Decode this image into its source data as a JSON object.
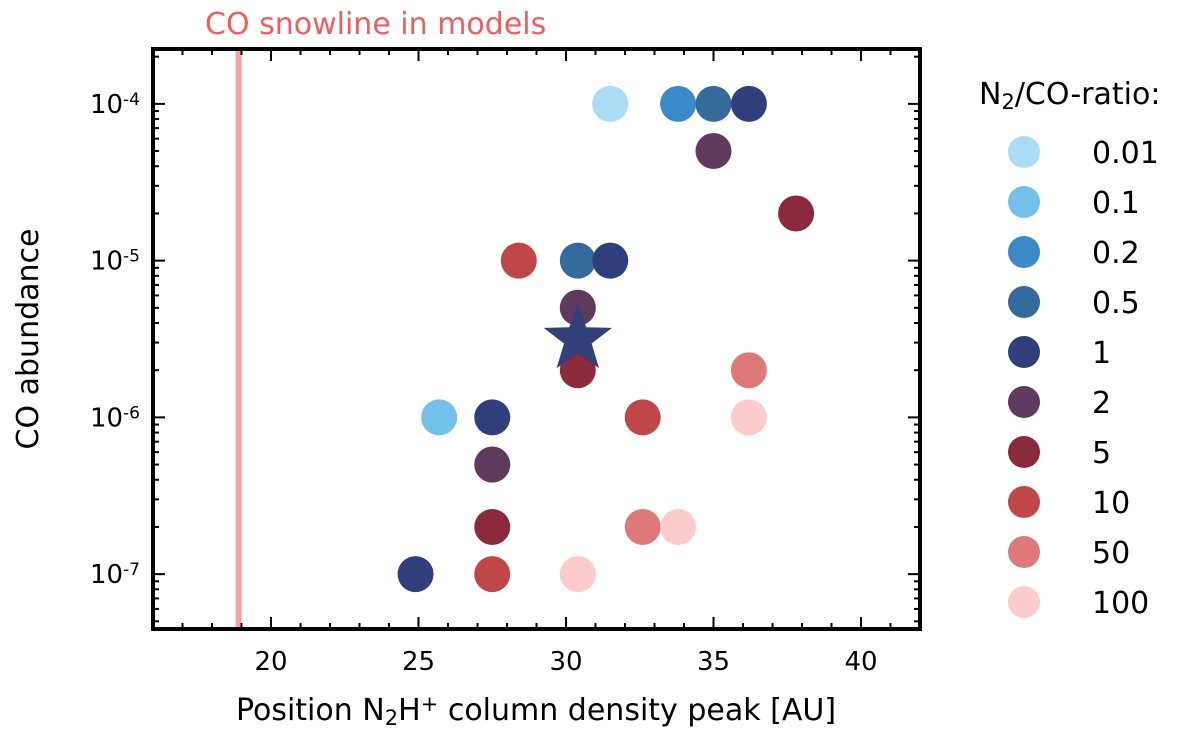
{
  "chart_data": {
    "type": "scatter",
    "annotation": "CO snowline in models",
    "annotation_color": "#f25c5c",
    "snowline_x": 18.9,
    "snowline_color": "#f6a0a0",
    "xlabel_pre": "Position N",
    "xlabel_sub": "2",
    "xlabel_mid": "H",
    "xlabel_sup": "+",
    "xlabel_post": " column density peak [AU]",
    "ylabel": "CO abundance",
    "xlim": [
      16,
      42
    ],
    "ylim_log10": [
      -7.35,
      -3.65
    ],
    "yscale": "log",
    "x_ticks": [
      "20",
      "25",
      "30",
      "35",
      "40"
    ],
    "y_ticks": [
      {
        "base": "10",
        "exp": "-4",
        "value": -4
      },
      {
        "base": "10",
        "exp": "-5",
        "value": -5
      },
      {
        "base": "10",
        "exp": "-6",
        "value": -6
      },
      {
        "base": "10",
        "exp": "-7",
        "value": -7
      }
    ],
    "legend_title_pre": "N",
    "legend_title_sub": "2",
    "legend_title_post": "/CO-ratio:",
    "legend_placement": "right",
    "series": [
      {
        "name": "0.01",
        "color": "#a9dcf5",
        "points": [
          [
            31.5,
            -4
          ]
        ]
      },
      {
        "name": "0.1",
        "color": "#72c1ea",
        "points": [
          [
            25.7,
            -6
          ]
        ]
      },
      {
        "name": "0.2",
        "color": "#3a8ac7",
        "points": [
          [
            33.8,
            -4
          ]
        ]
      },
      {
        "name": "0.5",
        "color": "#346b9c",
        "points": [
          [
            35.0,
            -4
          ],
          [
            30.4,
            -5
          ]
        ]
      },
      {
        "name": "1",
        "color": "#2e3f7c",
        "points": [
          [
            36.2,
            -4
          ],
          [
            31.5,
            -5
          ],
          [
            27.5,
            -6
          ],
          [
            24.9,
            -7
          ]
        ]
      },
      {
        "name": "2",
        "color": "#60395f",
        "points": [
          [
            35.0,
            -4.301
          ],
          [
            30.4,
            -5.301
          ],
          [
            27.5,
            -6.301
          ]
        ]
      },
      {
        "name": "5",
        "color": "#8b2a3d",
        "points": [
          [
            37.8,
            -4.699
          ],
          [
            30.4,
            -5.699
          ],
          [
            27.5,
            -6.699
          ]
        ]
      },
      {
        "name": "10",
        "color": "#bf4747",
        "points": [
          [
            28.4,
            -5
          ],
          [
            32.6,
            -6
          ],
          [
            27.5,
            -7
          ]
        ]
      },
      {
        "name": "50",
        "color": "#de7979",
        "points": [
          [
            36.2,
            -5.699
          ],
          [
            32.6,
            -6.699
          ]
        ]
      },
      {
        "name": "100",
        "color": "#fccccc",
        "points": [
          [
            36.2,
            -6
          ],
          [
            33.8,
            -6.699
          ],
          [
            30.4,
            -7
          ]
        ]
      }
    ],
    "star": {
      "x": 30.4,
      "y": -5.5,
      "color": "#313f7a"
    }
  }
}
